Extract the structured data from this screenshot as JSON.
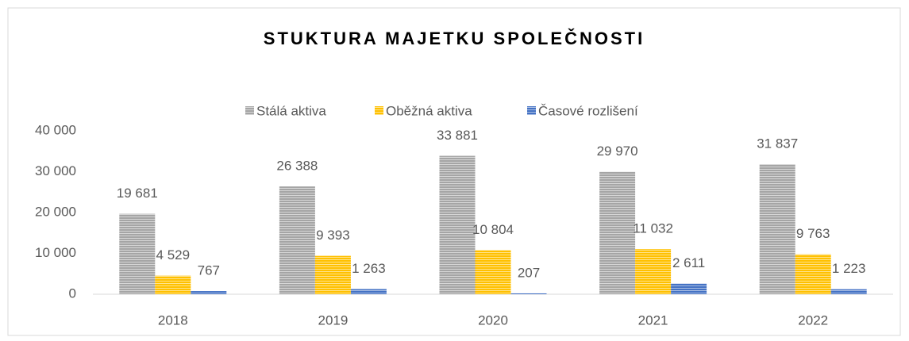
{
  "chart_data": {
    "type": "bar",
    "title": "STUKTURA MAJETKU SPOLEČNOSTI",
    "categories": [
      "2018",
      "2019",
      "2020",
      "2021",
      "2022"
    ],
    "series": [
      {
        "name": "Stálá aktiva",
        "color": "#a5a5a5",
        "values": [
          19681,
          26388,
          33881,
          29970,
          31837
        ],
        "value_labels": [
          "19 681",
          "26 388",
          "33 881",
          "29 970",
          "31 837"
        ]
      },
      {
        "name": "Oběžná aktiva",
        "color": "#ffc000",
        "values": [
          4529,
          9393,
          10804,
          11032,
          9763
        ],
        "value_labels": [
          "4 529",
          "9 393",
          "10 804",
          "11 032",
          "9 763"
        ]
      },
      {
        "name": "Časové rozlišení",
        "color": "#4472c4",
        "values": [
          767,
          1263,
          207,
          2611,
          1223
        ],
        "value_labels": [
          "767",
          "1 263",
          "207",
          "2 611",
          "1 223"
        ]
      }
    ],
    "ylim": [
      0,
      40000
    ],
    "yticks": [
      {
        "value": 0,
        "label": "0"
      },
      {
        "value": 10000,
        "label": "10 000"
      },
      {
        "value": 20000,
        "label": "20 000"
      },
      {
        "value": 30000,
        "label": "30 000"
      },
      {
        "value": 40000,
        "label": "40 000"
      }
    ],
    "legend": "top"
  }
}
